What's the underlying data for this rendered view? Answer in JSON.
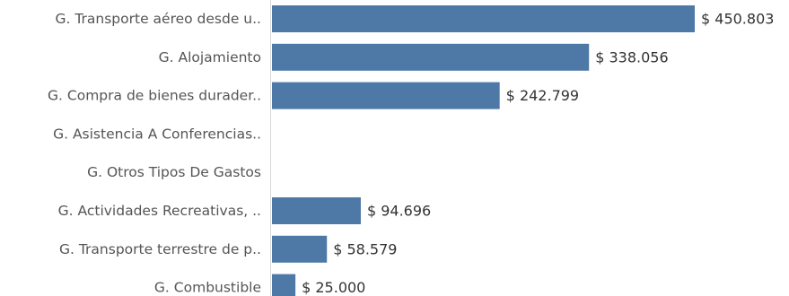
{
  "chart_data": {
    "type": "bar",
    "orientation": "horizontal",
    "bar_color": "#4e79a7",
    "categories": [
      "G. Transporte aéreo desde u..",
      "G. Alojamiento",
      "G. Compra de bienes durader..",
      "G. Asistencia A Conferencias..",
      "G. Otros Tipos De Gastos",
      "G. Actividades Recreativas, ..",
      "G. Transporte terrestre de p..",
      "G. Combustible"
    ],
    "values": [
      450803,
      338056,
      242799,
      null,
      null,
      94696,
      58579,
      25000
    ],
    "value_labels": [
      "$ 450.803",
      "$ 338.056",
      "$ 242.799",
      "",
      "",
      "$ 94.696",
      "$ 58.579",
      "$ 25.000"
    ],
    "title": "",
    "xlabel": "",
    "ylabel": "",
    "xlim": [
      0,
      450803
    ],
    "grid": false
  }
}
